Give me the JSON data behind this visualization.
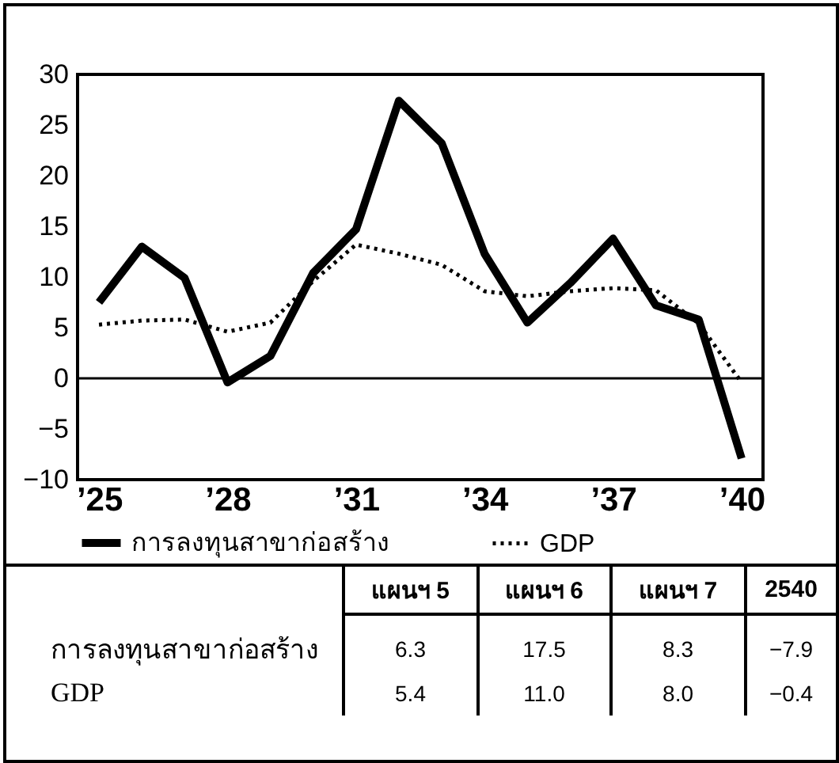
{
  "chart_data": [
    {
      "type": "line",
      "categories": [
        "’25",
        null,
        null,
        "’28",
        null,
        null,
        "’31",
        null,
        null,
        "’34",
        null,
        null,
        "’37",
        null,
        null,
        "’40"
      ],
      "series": [
        {
          "name": "การลงทุนสาขาก่อสร้าง",
          "color": "#000000",
          "line_style": "solid",
          "values": [
            7.5,
            13.0,
            9.9,
            -0.4,
            2.2,
            10.4,
            14.7,
            27.4,
            23.2,
            12.3,
            5.5,
            9.4,
            13.8,
            7.2,
            5.8,
            -7.9
          ]
        },
        {
          "name": "GDP",
          "color": "#000000",
          "line_style": "dotted",
          "values": [
            5.3,
            5.7,
            5.8,
            4.6,
            5.5,
            9.6,
            13.2,
            12.3,
            11.2,
            8.6,
            8.1,
            8.6,
            8.9,
            8.7,
            5.4,
            -0.4
          ]
        }
      ],
      "ylim": [
        -10,
        30
      ],
      "yticks": [
        -10,
        -5,
        0,
        5,
        10,
        15,
        20,
        25,
        30
      ],
      "ref_lines": [
        {
          "axis": "y",
          "value": 0,
          "color": "#000000"
        }
      ],
      "legend": "bottom",
      "grid": false,
      "marker": "none"
    },
    {
      "type": "other",
      "categories": [
        "แผนฯ 5",
        "แผนฯ 6",
        "แผนฯ 7",
        "2540"
      ],
      "series": [
        {
          "name": "การลงทุนสาขาก่อสร้าง",
          "value_labels": [
            "6.3",
            "17.5",
            "8.3",
            "−7.9"
          ],
          "values": [
            6.3,
            17.5,
            8.3,
            -7.9
          ]
        },
        {
          "name": "GDP",
          "value_labels": [
            "5.4",
            "11.0",
            "8.0",
            "−0.4"
          ],
          "values": [
            5.4,
            11.0,
            8.0,
            -0.4
          ]
        }
      ]
    }
  ]
}
